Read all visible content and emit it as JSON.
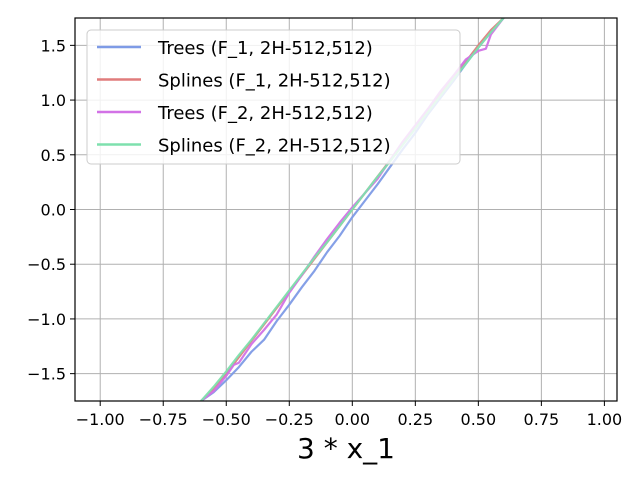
{
  "chart_data": {
    "type": "line",
    "title": "",
    "xlabel": "3 * x_1",
    "ylabel": "",
    "xlim": [
      -1.1,
      1.05
    ],
    "ylim": [
      -1.75,
      1.75
    ],
    "grid": true,
    "legend_position": "upper-left",
    "xticks": [
      -1.0,
      -0.75,
      -0.5,
      -0.25,
      0.0,
      0.25,
      0.5,
      0.75,
      1.0
    ],
    "xtick_labels": [
      "−1.00",
      "−0.75",
      "−0.50",
      "−0.25",
      "0.00",
      "0.25",
      "0.50",
      "0.75",
      "1.00"
    ],
    "yticks": [
      -1.5,
      -1.0,
      -0.5,
      0.0,
      0.5,
      1.0,
      1.5
    ],
    "ytick_labels": [
      "−1.5",
      "−1.0",
      "−0.5",
      "0.0",
      "0.5",
      "1.0",
      "1.5"
    ],
    "series": [
      {
        "name": "Trees (F_1, 2H-512,512)",
        "color": "#7e9be6",
        "x": [
          -0.6,
          -0.55,
          -0.5,
          -0.45,
          -0.4,
          -0.35,
          -0.3,
          -0.25,
          -0.2,
          -0.15,
          -0.1,
          -0.05,
          0.0,
          0.05,
          0.1,
          0.15,
          0.2,
          0.25,
          0.3,
          0.35,
          0.4,
          0.45,
          0.5,
          0.55,
          0.6
        ],
        "y": [
          -1.75,
          -1.67,
          -1.56,
          -1.44,
          -1.3,
          -1.19,
          -1.02,
          -0.87,
          -0.71,
          -0.56,
          -0.39,
          -0.24,
          -0.07,
          0.08,
          0.23,
          0.39,
          0.55,
          0.7,
          0.87,
          1.02,
          1.17,
          1.33,
          1.48,
          1.62,
          1.75
        ]
      },
      {
        "name": "Splines (F_1, 2H-512,512)",
        "color": "#e07c7c",
        "x": [
          -0.6,
          -0.55,
          -0.5,
          -0.45,
          -0.4,
          -0.35,
          -0.3,
          -0.25,
          -0.2,
          -0.15,
          -0.1,
          -0.05,
          0.0,
          0.05,
          0.1,
          0.15,
          0.2,
          0.25,
          0.3,
          0.35,
          0.4,
          0.45,
          0.5,
          0.55,
          0.6
        ],
        "y": [
          -1.75,
          -1.64,
          -1.5,
          -1.35,
          -1.2,
          -1.05,
          -0.9,
          -0.75,
          -0.6,
          -0.45,
          -0.3,
          -0.15,
          0.0,
          0.15,
          0.3,
          0.45,
          0.6,
          0.75,
          0.9,
          1.05,
          1.2,
          1.35,
          1.5,
          1.64,
          1.75
        ]
      },
      {
        "name": "Trees (F_2, 2H-512,512)",
        "color": "#d272e6",
        "x": [
          -0.6,
          -0.55,
          -0.5,
          -0.47,
          -0.45,
          -0.4,
          -0.35,
          -0.3,
          -0.25,
          -0.2,
          -0.15,
          -0.1,
          -0.05,
          0.0,
          0.05,
          0.1,
          0.15,
          0.2,
          0.25,
          0.3,
          0.35,
          0.4,
          0.45,
          0.5,
          0.53,
          0.55,
          0.6
        ],
        "y": [
          -1.75,
          -1.66,
          -1.52,
          -1.42,
          -1.4,
          -1.23,
          -1.1,
          -0.96,
          -0.76,
          -0.6,
          -0.43,
          -0.27,
          -0.12,
          0.02,
          0.15,
          0.28,
          0.45,
          0.62,
          0.77,
          0.92,
          1.08,
          1.22,
          1.37,
          1.45,
          1.47,
          1.6,
          1.75
        ]
      },
      {
        "name": "Splines (F_2, 2H-512,512)",
        "color": "#7ee0ad",
        "x": [
          -0.6,
          -0.55,
          -0.5,
          -0.45,
          -0.4,
          -0.35,
          -0.3,
          -0.25,
          -0.2,
          -0.15,
          -0.1,
          -0.05,
          0.0,
          0.05,
          0.1,
          0.15,
          0.2,
          0.25,
          0.3,
          0.35,
          0.4,
          0.45,
          0.5,
          0.55,
          0.6
        ],
        "y": [
          -1.75,
          -1.62,
          -1.48,
          -1.33,
          -1.19,
          -1.04,
          -0.89,
          -0.74,
          -0.59,
          -0.44,
          -0.3,
          -0.15,
          0.0,
          0.15,
          0.3,
          0.44,
          0.59,
          0.74,
          0.89,
          1.04,
          1.19,
          1.33,
          1.48,
          1.62,
          1.75
        ]
      }
    ]
  }
}
